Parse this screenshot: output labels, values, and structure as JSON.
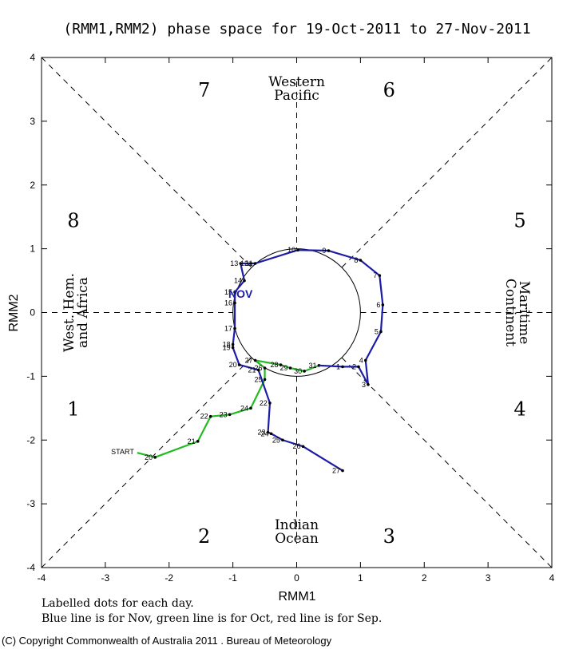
{
  "chart_data": {
    "type": "line",
    "title": "(RMM1,RMM2) phase space for 19-Oct-2011 to 27-Nov-2011",
    "xlabel": "RMM1",
    "ylabel": "RMM2",
    "xlim": [
      -4,
      4
    ],
    "ylim": [
      -4,
      4
    ],
    "xticks": [
      "-4",
      "-3",
      "-2",
      "-1",
      "0",
      "1",
      "2",
      "3",
      "4"
    ],
    "yticks": [
      "-4",
      "-3",
      "-2",
      "-1",
      "0",
      "1",
      "2",
      "3",
      "4"
    ],
    "unit_circle_radius": 1,
    "phases": [
      {
        "label": "1",
        "x": -3.5,
        "y": -1.5
      },
      {
        "label": "2",
        "x": -1.45,
        "y": -3.5
      },
      {
        "label": "3",
        "x": 1.45,
        "y": -3.5
      },
      {
        "label": "4",
        "x": 3.5,
        "y": -1.5
      },
      {
        "label": "5",
        "x": 3.5,
        "y": 1.45
      },
      {
        "label": "6",
        "x": 1.45,
        "y": 3.5
      },
      {
        "label": "7",
        "x": -1.45,
        "y": 3.5
      },
      {
        "label": "8",
        "x": -3.5,
        "y": 1.45
      }
    ],
    "regions": {
      "top": [
        "Western",
        "Pacific"
      ],
      "bottom": [
        "Indian",
        "Ocean"
      ],
      "left": [
        "West. Hem.",
        "and Africa"
      ],
      "right": [
        "Maritime",
        "Continent"
      ]
    },
    "start_label": "START",
    "month_label": {
      "text": "NOV",
      "x": -1.07,
      "y": 0.23
    },
    "series": [
      {
        "name": "Oct",
        "color": "#22bb22",
        "points": [
          {
            "day": "",
            "x": -2.5,
            "y": -2.2
          },
          {
            "day": "20",
            "x": -2.22,
            "y": -2.27
          },
          {
            "day": "21",
            "x": -1.55,
            "y": -2.02
          },
          {
            "day": "22",
            "x": -1.35,
            "y": -1.63
          },
          {
            "day": "23",
            "x": -1.05,
            "y": -1.6
          },
          {
            "day": "24",
            "x": -0.72,
            "y": -1.5
          },
          {
            "day": "25",
            "x": -0.5,
            "y": -1.05
          },
          {
            "day": "26",
            "x": -0.5,
            "y": -0.87
          },
          {
            "day": "27",
            "x": -0.65,
            "y": -0.75
          },
          {
            "day": "28",
            "x": -0.25,
            "y": -0.82
          },
          {
            "day": "29",
            "x": -0.1,
            "y": -0.87
          },
          {
            "day": "30",
            "x": 0.12,
            "y": -0.92
          },
          {
            "day": "31",
            "x": 0.35,
            "y": -0.83
          }
        ]
      },
      {
        "name": "Nov",
        "color": "#1c1ca8",
        "points": [
          {
            "day": "",
            "x": 0.35,
            "y": -0.83
          },
          {
            "day": "1",
            "x": 0.72,
            "y": -0.85
          },
          {
            "day": "2",
            "x": 0.97,
            "y": -0.85
          },
          {
            "day": "3",
            "x": 1.12,
            "y": -1.13
          },
          {
            "day": "4",
            "x": 1.08,
            "y": -0.75
          },
          {
            "day": "5",
            "x": 1.32,
            "y": -0.3
          },
          {
            "day": "6",
            "x": 1.35,
            "y": 0.12
          },
          {
            "day": "7",
            "x": 1.3,
            "y": 0.58
          },
          {
            "day": "8",
            "x": 1.0,
            "y": 0.82
          },
          {
            "day": "9",
            "x": 0.5,
            "y": 0.97
          },
          {
            "day": "10",
            "x": 0.02,
            "y": 0.98
          },
          {
            "day": "11",
            "x": -0.65,
            "y": 0.77
          },
          {
            "day": "12",
            "x": -0.72,
            "y": 0.77
          },
          {
            "day": "13",
            "x": -0.88,
            "y": 0.77
          },
          {
            "day": "14",
            "x": -0.82,
            "y": 0.5
          },
          {
            "day": "15",
            "x": -0.97,
            "y": 0.32
          },
          {
            "day": "16",
            "x": -0.97,
            "y": 0.15
          },
          {
            "day": "17",
            "x": -0.97,
            "y": -0.25
          },
          {
            "day": "18",
            "x": -1.0,
            "y": -0.5
          },
          {
            "day": "19",
            "x": -1.0,
            "y": -0.55
          },
          {
            "day": "20",
            "x": -0.9,
            "y": -0.82
          },
          {
            "day": "21",
            "x": -0.6,
            "y": -0.9
          },
          {
            "day": "22",
            "x": -0.42,
            "y": -1.42
          },
          {
            "day": "23",
            "x": -0.45,
            "y": -1.88
          },
          {
            "day": "24",
            "x": -0.4,
            "y": -1.9
          },
          {
            "day": "25",
            "x": -0.22,
            "y": -2.0
          },
          {
            "day": "26",
            "x": 0.1,
            "y": -2.1
          },
          {
            "day": "27",
            "x": 0.72,
            "y": -2.48
          }
        ]
      }
    ]
  },
  "notes": [
    "Labelled dots for each day.",
    "Blue line is for Nov, green line is for Oct, red line is for Sep."
  ],
  "copyright": "(C) Copyright Commonwealth of Australia 2011 . Bureau of Meteorology"
}
